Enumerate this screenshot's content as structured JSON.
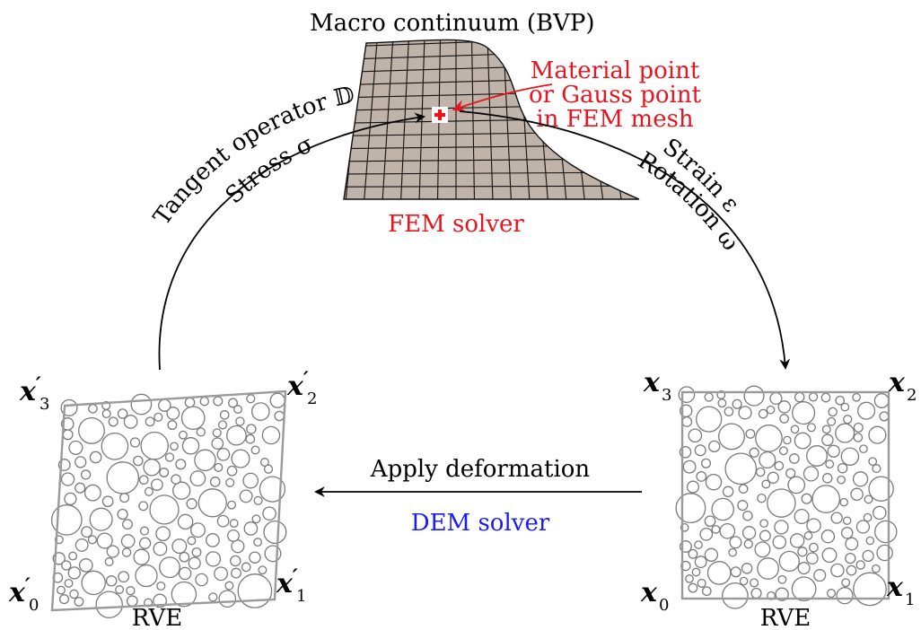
{
  "macro": {
    "title": "Macro continuum (BVP)",
    "solver": "FEM solver",
    "annotation": [
      "Material point",
      "or Gauss point",
      "in FEM mesh"
    ],
    "mesh_fill": "#c0b3aa"
  },
  "left_arc": {
    "outer": "Tangent operator 𝔻",
    "inner": "Stress σ"
  },
  "right_arc": {
    "outer": "Strain ε",
    "inner": "Rotation ω"
  },
  "bottom": {
    "apply": "Apply deformation",
    "dem": "DEM solver"
  },
  "rve_left": {
    "label": "RVE",
    "corners": [
      {
        "base": "x",
        "prime": "′",
        "sub": "3"
      },
      {
        "base": "x",
        "prime": "′",
        "sub": "2"
      },
      {
        "base": "x",
        "prime": "′",
        "sub": "0"
      },
      {
        "base": "x",
        "prime": "′",
        "sub": "1"
      }
    ]
  },
  "rve_right": {
    "label": "RVE",
    "corners": [
      {
        "base": "x",
        "prime": "",
        "sub": "3"
      },
      {
        "base": "x",
        "prime": "",
        "sub": "2"
      },
      {
        "base": "x",
        "prime": "",
        "sub": "0"
      },
      {
        "base": "x",
        "prime": "",
        "sub": "1"
      }
    ]
  },
  "colors": {
    "accent_red": "#e8141e",
    "dem_blue": "#1a1aff",
    "particle_stroke": "#7a7a7a"
  }
}
